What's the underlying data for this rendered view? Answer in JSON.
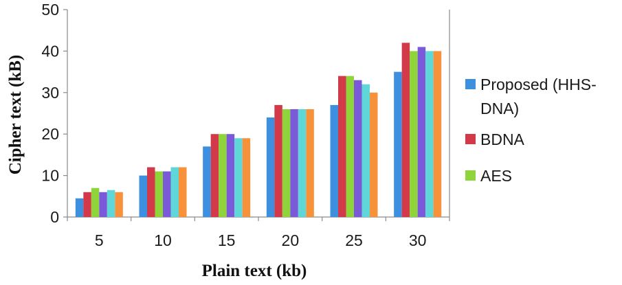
{
  "chart_data": {
    "type": "bar",
    "xlabel": "Plain text (kb)",
    "ylabel": "Cipher text (kB)",
    "categories": [
      "5",
      "10",
      "15",
      "20",
      "25",
      "30"
    ],
    "ylim": [
      0,
      50
    ],
    "yticks": [
      "0",
      "10",
      "20",
      "30",
      "40",
      "50"
    ],
    "grid": "none",
    "legend_position": "right",
    "series": [
      {
        "name": "Proposed (HHS-DNA)",
        "color": "#3d8fe0",
        "values": [
          4.5,
          10,
          17,
          24,
          27,
          35
        ]
      },
      {
        "name": "BDNA",
        "color": "#d23a4a",
        "values": [
          6,
          12,
          20,
          27,
          34,
          42
        ]
      },
      {
        "name": "AES",
        "color": "#8ed43a",
        "values": [
          7,
          11,
          20,
          26,
          34,
          40
        ]
      },
      {
        "color": "#7a5ad8",
        "values": [
          6,
          11,
          20,
          26,
          33,
          41
        ]
      },
      {
        "color": "#5fd6d8",
        "values": [
          6.5,
          12,
          19,
          26,
          32,
          40
        ]
      },
      {
        "color": "#f7923a",
        "values": [
          6,
          12,
          19,
          26,
          30,
          40
        ]
      }
    ]
  }
}
